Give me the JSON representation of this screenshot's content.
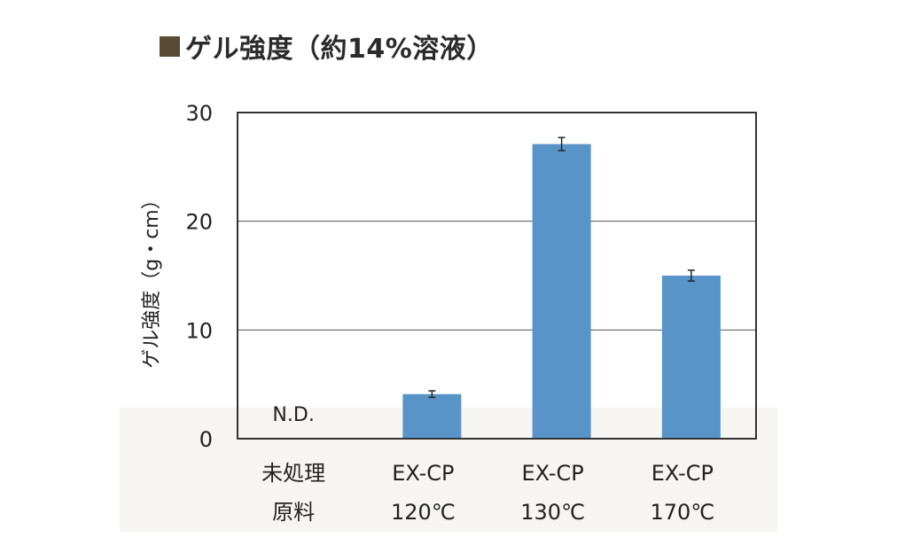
{
  "title": "ゲル強度（約14%溶液）",
  "colors": {
    "bar": "#5894c8",
    "title_square": "#5b4a33",
    "axis": "#333333",
    "grid": "#555555",
    "band": "#f7f5f1"
  },
  "chart_data": {
    "type": "bar",
    "title": "ゲル強度（約14%溶液）",
    "ylabel": "ゲル強度（g・cm）",
    "xlabel": "",
    "ylim": [
      0,
      30
    ],
    "yticks": [
      0,
      10,
      20,
      30
    ],
    "grid": true,
    "categories": [
      [
        "未処理",
        "原料"
      ],
      [
        "EX-CP",
        "120℃"
      ],
      [
        "EX-CP",
        "130℃"
      ],
      [
        "EX-CP",
        "170℃"
      ]
    ],
    "values": [
      null,
      4.1,
      27.1,
      15.0
    ],
    "errors": [
      null,
      0.3,
      0.6,
      0.5
    ],
    "annotations": [
      {
        "category_index": 0,
        "text": "N.D."
      }
    ]
  }
}
